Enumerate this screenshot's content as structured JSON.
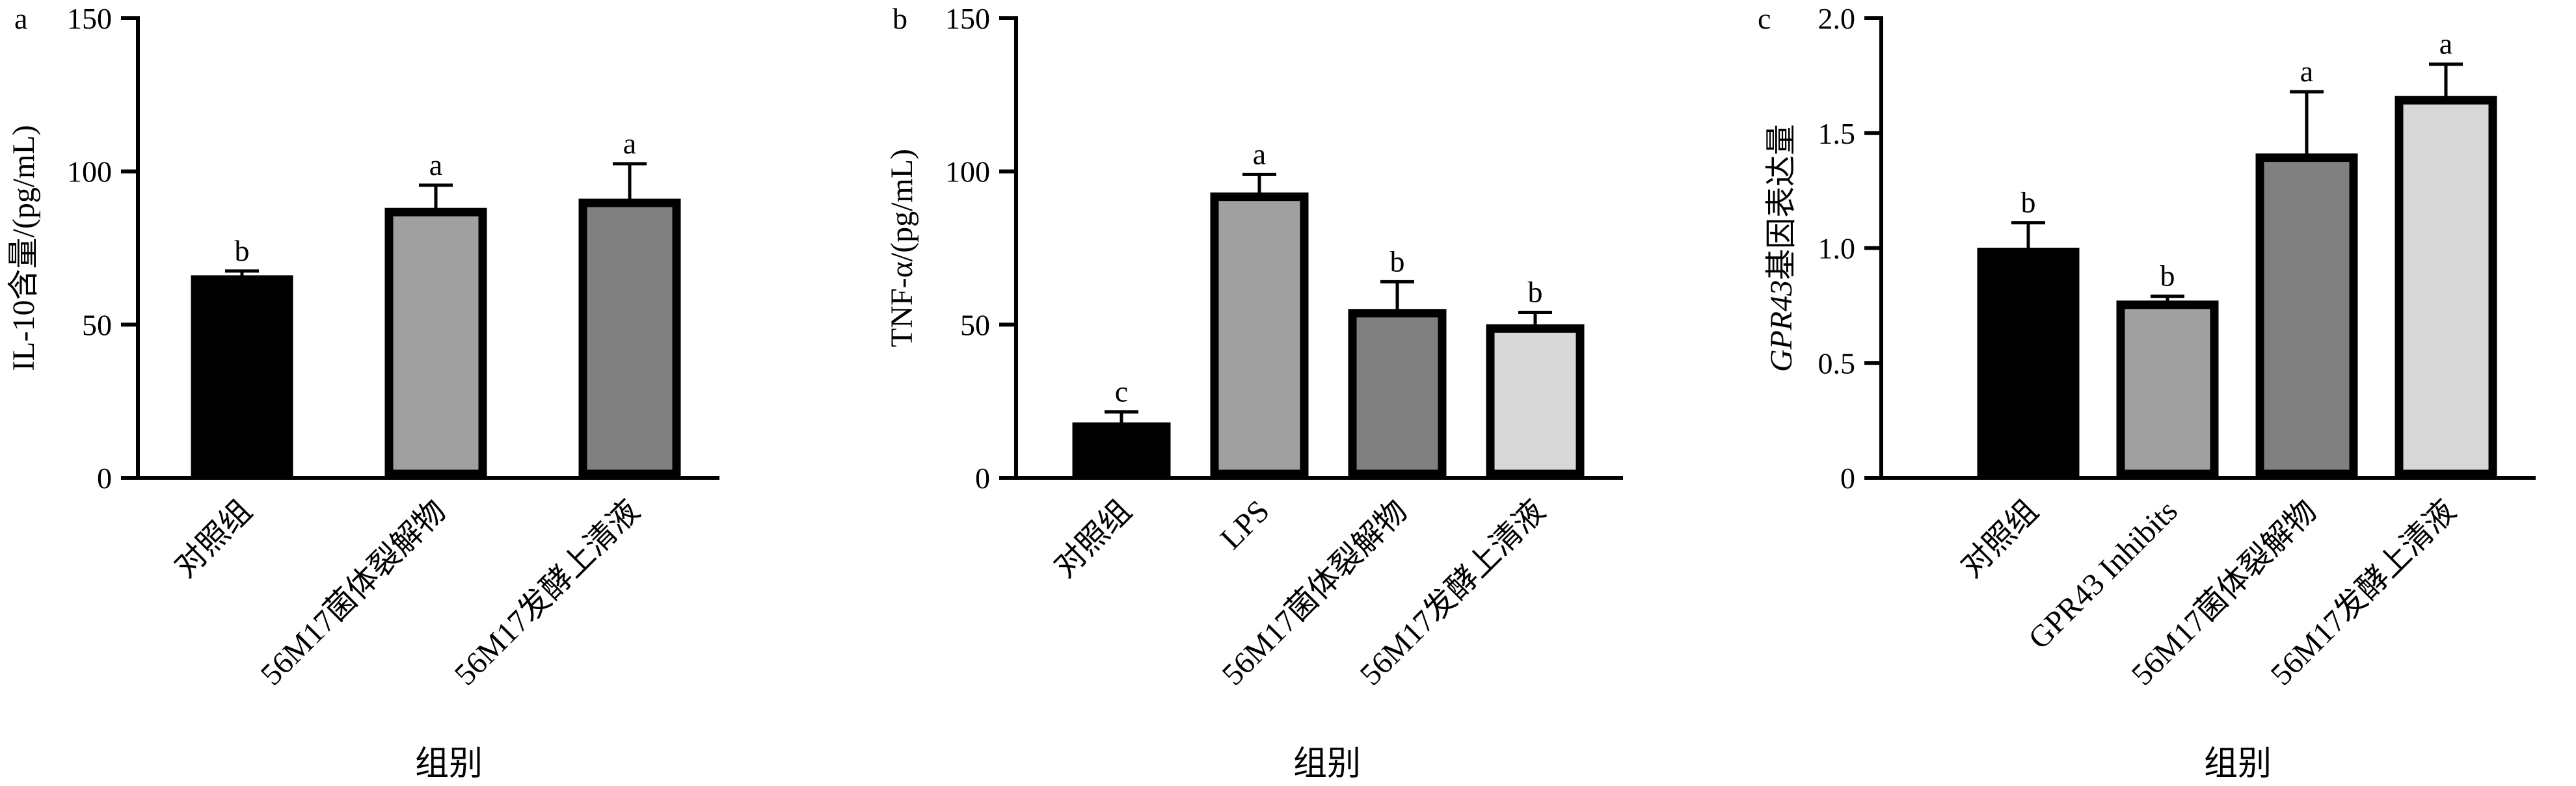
{
  "chart_data": [
    {
      "type": "bar",
      "panel_label": "a",
      "ylabel": "IL-10含量/(pg/mL)",
      "xlabel": "组别",
      "ylim": [
        0,
        150
      ],
      "yticks": [
        0,
        50,
        100,
        150
      ],
      "ytick_labels": [
        "0",
        "50",
        "100",
        "150"
      ],
      "categories": [
        "对照组",
        "56M17菌体裂解物",
        "56M17发酵上清液"
      ],
      "values": [
        66,
        88,
        91
      ],
      "errors": [
        1.5,
        7.5,
        11.5
      ],
      "significance": [
        "b",
        "a",
        "a"
      ],
      "colors": [
        "#000000",
        "#a0a0a0",
        "#808080"
      ]
    },
    {
      "type": "bar",
      "panel_label": "b",
      "ylabel": "TNF-α/(pg/mL)",
      "xlabel": "组别",
      "ylim": [
        0,
        150
      ],
      "yticks": [
        0,
        50,
        100,
        150
      ],
      "ytick_labels": [
        "0",
        "50",
        "100",
        "150"
      ],
      "categories": [
        "对照组",
        "LPS",
        "56M17菌体裂解物",
        "56M17发酵上清液"
      ],
      "values": [
        18,
        93,
        55,
        50
      ],
      "errors": [
        3.5,
        6,
        9,
        4
      ],
      "significance": [
        "c",
        "a",
        "b",
        "b"
      ],
      "colors": [
        "#000000",
        "#a0a0a0",
        "#808080",
        "#d8d8d8"
      ]
    },
    {
      "type": "bar",
      "panel_label": "c",
      "ylabel_italic": "GPR43",
      "ylabel": "基因表达量",
      "xlabel": "组别",
      "ylim": [
        0,
        2.0
      ],
      "yticks": [
        0,
        0.5,
        1.0,
        1.5,
        2.0
      ],
      "ytick_labels": [
        "0",
        "0.5",
        "1.0",
        "1.5",
        "2.0"
      ],
      "categories": [
        "对照组",
        "GPR43 Inhibits",
        "56M17菌体裂解物",
        "56M17发酵上清液"
      ],
      "values": [
        1.0,
        0.77,
        1.41,
        1.66
      ],
      "errors": [
        0.11,
        0.02,
        0.27,
        0.14
      ],
      "significance": [
        "b",
        "b",
        "a",
        "a"
      ],
      "colors": [
        "#000000",
        "#a0a0a0",
        "#808080",
        "#d8d8d8"
      ]
    }
  ]
}
